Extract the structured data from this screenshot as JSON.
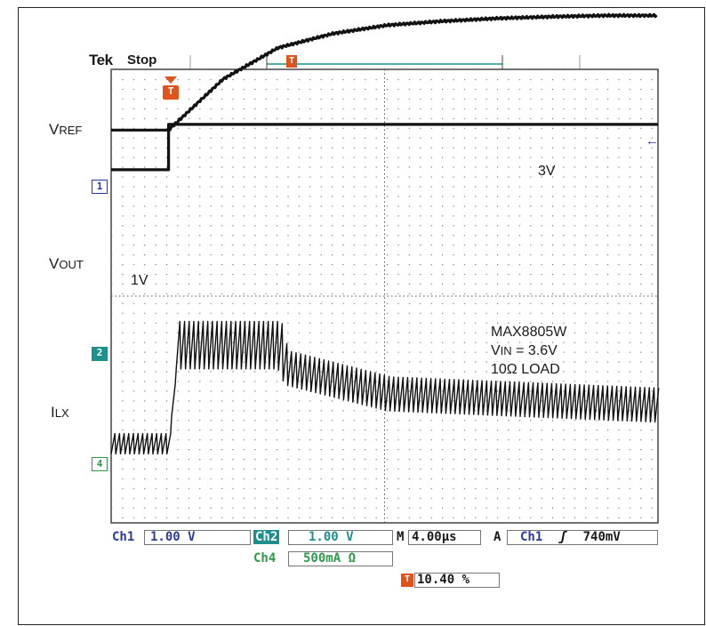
{
  "scope": {
    "brand": "Tek",
    "status": "Stop",
    "trigger_glyph": "T",
    "trigger_level_arrow": "←"
  },
  "traces": {
    "vref": {
      "main": "V",
      "sub": "REF"
    },
    "vout": {
      "main": "V",
      "sub": "OUT"
    },
    "ilx": {
      "main": "I",
      "sub": "LX"
    }
  },
  "annotations": {
    "vout_start": "1V",
    "vout_end": "3V",
    "device": "MAX8805W",
    "vin_main": "V",
    "vin_sub": "IN",
    "vin_value": " = 3.6V",
    "load": "10Ω LOAD"
  },
  "channel_markers": {
    "ch1": "1",
    "ch2": "2",
    "ch4": "4"
  },
  "readout": {
    "ch1_label": "Ch1",
    "ch1_scale": "1.00 V",
    "ch2_label": "Ch2",
    "ch2_scale": "1.00 V",
    "ch4_label": "Ch4",
    "ch4_scale": "500mA Ω",
    "time_label": "M",
    "time_scale": "4.00µs",
    "trig_mode": "A",
    "trig_source": "Ch1",
    "trig_slope": "ʃ",
    "trig_level": "740mV",
    "trig_pos_glyph": "T",
    "trig_pos": "10.40 %"
  },
  "colors": {
    "ch1": "#2b3a9e",
    "ch2": "#1d8f8c",
    "ch4": "#2e9a4a",
    "trigger": "#e0531c",
    "trace": "#111111",
    "grid": "#555555"
  },
  "chart_data": {
    "type": "line",
    "title": "",
    "xlabel": "",
    "ylabel": "",
    "x_unit": "µs",
    "time_per_div": 4.0,
    "xlim": [
      -4.2,
      35.8
    ],
    "trigger_time": 0,
    "grid": true,
    "divisions": {
      "x": 10,
      "y": 8
    },
    "series": [
      {
        "name": "VREF",
        "channel": "Ch1",
        "unit": "V",
        "volts_per_div": 1.0,
        "x": [
          -4.2,
          0,
          0,
          35.8
        ],
        "y": [
          0.3,
          0.3,
          1.1,
          1.1
        ]
      },
      {
        "name": "VOUT",
        "channel": "Ch1",
        "unit": "V",
        "volts_per_div": 1.0,
        "x": [
          -4.2,
          0,
          4,
          8,
          12,
          16,
          20,
          24,
          28,
          32,
          35.8
        ],
        "y": [
          1.0,
          1.0,
          1.9,
          2.45,
          2.7,
          2.85,
          2.92,
          2.97,
          3.0,
          3.02,
          3.02
        ]
      },
      {
        "name": "ILX",
        "channel": "Ch4",
        "unit": "mA",
        "amps_per_div": 500,
        "x": [
          -4.2,
          0,
          0.5,
          8,
          8.5,
          16,
          35.8
        ],
        "y_avg": [
          180,
          180,
          1050,
          1050,
          850,
          620,
          520
        ],
        "ripple_pp": [
          180,
          180,
          420,
          420,
          300,
          300,
          300
        ]
      }
    ]
  }
}
